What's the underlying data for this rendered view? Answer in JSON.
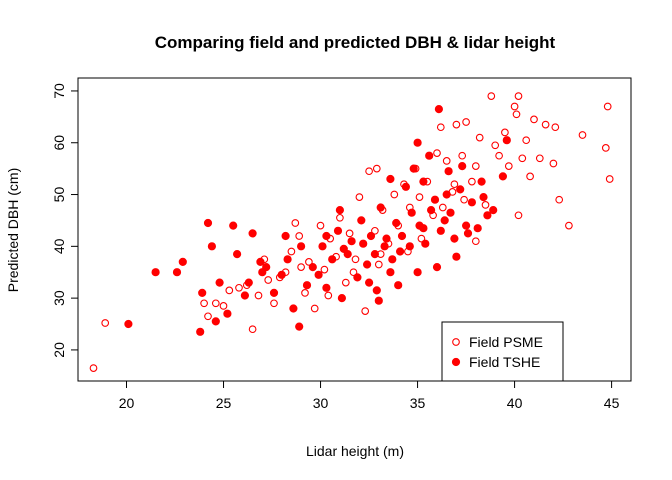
{
  "chart_data": {
    "type": "scatter",
    "title": "Comparing field and predicted DBH & lidar height",
    "xlabel": "Lidar height (m)",
    "ylabel": "Predicted DBH (cm)",
    "xlim": [
      17.5,
      46.0
    ],
    "ylim": [
      14.0,
      72.5
    ],
    "xticks": [
      20,
      25,
      30,
      35,
      40,
      45
    ],
    "yticks": [
      20,
      30,
      40,
      50,
      60,
      70
    ],
    "grid": false,
    "legend_position": "bottom-right",
    "series": [
      {
        "name": "Field PSME",
        "marker": "open-circle",
        "color": "#ff0000",
        "points": [
          [
            18.3,
            16.5
          ],
          [
            18.9,
            25.2
          ],
          [
            24.0,
            29.0
          ],
          [
            24.2,
            26.5
          ],
          [
            24.6,
            29.0
          ],
          [
            25.0,
            28.5
          ],
          [
            25.3,
            31.5
          ],
          [
            25.8,
            32.0
          ],
          [
            26.2,
            32.5
          ],
          [
            26.5,
            24.0
          ],
          [
            26.8,
            30.5
          ],
          [
            27.1,
            37.5
          ],
          [
            27.3,
            33.5
          ],
          [
            27.6,
            29.0
          ],
          [
            27.9,
            34.0
          ],
          [
            28.2,
            35.0
          ],
          [
            28.5,
            39.0
          ],
          [
            28.7,
            44.5
          ],
          [
            28.9,
            42.0
          ],
          [
            29.2,
            31.0
          ],
          [
            29.4,
            37.0
          ],
          [
            29.7,
            28.0
          ],
          [
            30.0,
            44.0
          ],
          [
            30.2,
            35.5
          ],
          [
            30.5,
            41.5
          ],
          [
            30.8,
            38.0
          ],
          [
            31.0,
            45.5
          ],
          [
            31.3,
            33.0
          ],
          [
            31.5,
            42.5
          ],
          [
            31.8,
            37.5
          ],
          [
            32.0,
            49.5
          ],
          [
            32.3,
            27.5
          ],
          [
            32.5,
            54.5
          ],
          [
            32.8,
            43.0
          ],
          [
            33.0,
            36.5
          ],
          [
            33.2,
            47.0
          ],
          [
            33.5,
            40.5
          ],
          [
            33.8,
            50.0
          ],
          [
            34.0,
            44.0
          ],
          [
            34.3,
            52.0
          ],
          [
            34.6,
            47.5
          ],
          [
            34.9,
            55.0
          ],
          [
            35.2,
            41.5
          ],
          [
            35.5,
            52.5
          ],
          [
            35.8,
            46.0
          ],
          [
            36.0,
            58.0
          ],
          [
            36.2,
            63.0
          ],
          [
            36.5,
            56.5
          ],
          [
            36.8,
            50.5
          ],
          [
            37.0,
            63.5
          ],
          [
            37.3,
            57.5
          ],
          [
            37.5,
            64.0
          ],
          [
            37.8,
            52.5
          ],
          [
            38.0,
            55.5
          ],
          [
            38.2,
            61.0
          ],
          [
            38.5,
            48.0
          ],
          [
            38.8,
            69.0
          ],
          [
            39.0,
            59.5
          ],
          [
            39.2,
            57.5
          ],
          [
            39.5,
            62.0
          ],
          [
            39.7,
            55.5
          ],
          [
            40.0,
            67.0
          ],
          [
            40.1,
            65.5
          ],
          [
            40.2,
            69.0
          ],
          [
            40.4,
            57.0
          ],
          [
            40.6,
            60.5
          ],
          [
            40.8,
            53.5
          ],
          [
            41.0,
            64.5
          ],
          [
            41.3,
            57.0
          ],
          [
            41.6,
            63.5
          ],
          [
            42.0,
            56.0
          ],
          [
            42.1,
            63.0
          ],
          [
            42.3,
            49.0
          ],
          [
            42.8,
            44.0
          ],
          [
            43.5,
            61.5
          ],
          [
            44.7,
            59.0
          ],
          [
            44.8,
            67.0
          ],
          [
            44.9,
            53.0
          ],
          [
            40.2,
            46.0
          ],
          [
            38.0,
            41.0
          ],
          [
            37.4,
            49.0
          ],
          [
            36.9,
            52.0
          ],
          [
            36.3,
            47.5
          ],
          [
            35.1,
            49.5
          ],
          [
            34.5,
            39.0
          ],
          [
            33.1,
            38.5
          ],
          [
            31.7,
            35.0
          ],
          [
            30.4,
            30.5
          ],
          [
            29.0,
            36.0
          ],
          [
            32.9,
            55.0
          ]
        ]
      },
      {
        "name": "Field TSHE",
        "marker": "filled-circle",
        "color": "#ff0000",
        "points": [
          [
            20.1,
            25.0
          ],
          [
            21.5,
            35.0
          ],
          [
            22.6,
            35.0
          ],
          [
            22.9,
            37.0
          ],
          [
            23.8,
            23.5
          ],
          [
            23.9,
            31.0
          ],
          [
            24.2,
            44.5
          ],
          [
            24.4,
            40.0
          ],
          [
            24.6,
            25.5
          ],
          [
            24.8,
            33.0
          ],
          [
            25.2,
            27.0
          ],
          [
            25.5,
            44.0
          ],
          [
            25.7,
            38.5
          ],
          [
            26.3,
            33.0
          ],
          [
            26.5,
            42.5
          ],
          [
            26.9,
            37.0
          ],
          [
            27.2,
            36.0
          ],
          [
            27.6,
            31.0
          ],
          [
            28.0,
            34.5
          ],
          [
            28.2,
            42.0
          ],
          [
            28.6,
            28.0
          ],
          [
            28.9,
            24.5
          ],
          [
            29.3,
            32.5
          ],
          [
            29.6,
            36.0
          ],
          [
            29.9,
            34.5
          ],
          [
            30.1,
            40.0
          ],
          [
            30.3,
            32.0
          ],
          [
            30.6,
            37.5
          ],
          [
            30.9,
            43.0
          ],
          [
            31.1,
            30.0
          ],
          [
            31.4,
            38.5
          ],
          [
            31.6,
            41.0
          ],
          [
            31.9,
            34.0
          ],
          [
            32.1,
            45.0
          ],
          [
            32.4,
            36.5
          ],
          [
            32.6,
            42.0
          ],
          [
            32.9,
            31.5
          ],
          [
            33.1,
            47.5
          ],
          [
            33.3,
            40.0
          ],
          [
            33.6,
            35.0
          ],
          [
            33.9,
            44.5
          ],
          [
            34.1,
            39.0
          ],
          [
            34.4,
            51.5
          ],
          [
            34.7,
            46.5
          ],
          [
            35.0,
            60.0
          ],
          [
            35.3,
            43.5
          ],
          [
            35.6,
            57.5
          ],
          [
            35.9,
            49.0
          ],
          [
            36.1,
            66.5
          ],
          [
            36.4,
            45.0
          ],
          [
            36.6,
            54.5
          ],
          [
            36.9,
            41.5
          ],
          [
            37.2,
            51.0
          ],
          [
            37.5,
            44.0
          ],
          [
            37.8,
            48.5
          ],
          [
            38.1,
            43.5
          ],
          [
            38.3,
            52.5
          ],
          [
            38.6,
            46.0
          ],
          [
            31.2,
            39.5
          ],
          [
            32.2,
            40.5
          ],
          [
            32.8,
            38.5
          ],
          [
            33.4,
            41.5
          ],
          [
            33.7,
            37.5
          ],
          [
            34.2,
            42.0
          ],
          [
            34.6,
            40.0
          ],
          [
            35.1,
            44.0
          ],
          [
            35.4,
            40.5
          ],
          [
            35.7,
            47.0
          ],
          [
            36.2,
            43.0
          ],
          [
            36.7,
            46.5
          ],
          [
            37.0,
            38.0
          ],
          [
            37.6,
            42.5
          ],
          [
            32.5,
            33.0
          ],
          [
            33.0,
            29.5
          ],
          [
            34.0,
            32.5
          ],
          [
            35.0,
            35.0
          ],
          [
            36.0,
            36.0
          ],
          [
            31.0,
            47.0
          ],
          [
            33.6,
            53.0
          ],
          [
            34.8,
            55.0
          ],
          [
            30.3,
            42.0
          ],
          [
            29.0,
            40.0
          ],
          [
            28.3,
            37.5
          ],
          [
            27.0,
            35.0
          ],
          [
            26.1,
            30.5
          ],
          [
            35.3,
            52.5
          ],
          [
            36.5,
            50.0
          ],
          [
            37.3,
            55.5
          ],
          [
            38.4,
            49.5
          ],
          [
            39.6,
            60.5
          ],
          [
            39.4,
            53.5
          ],
          [
            38.9,
            47.0
          ]
        ]
      }
    ]
  }
}
